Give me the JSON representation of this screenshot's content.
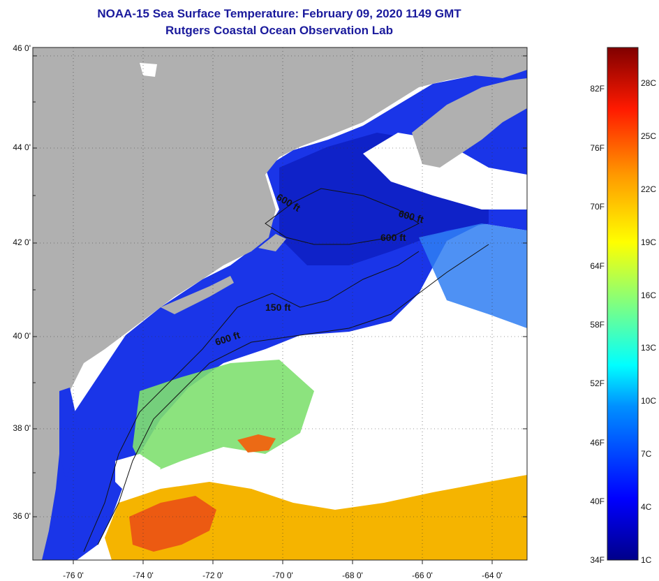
{
  "header": {
    "title": "NOAA-15 Sea Surface Temperature:  February 09, 2020 1149 GMT",
    "subtitle": "Rutgers Coastal Ocean Observation Lab"
  },
  "axes": {
    "lat_labels": [
      "46 0'",
      "44 0'",
      "42 0'",
      "40 0'",
      "38 0'",
      "36 0'"
    ],
    "lon_labels": [
      "-76 0'",
      "-74 0'",
      "-72 0'",
      "-70 0'",
      "-68 0'",
      "-66 0'",
      "-64 0'"
    ]
  },
  "contours": [
    "600 ft",
    "600 ft",
    "600 ft",
    "150 ft",
    "600 ft"
  ],
  "colorbar": {
    "fahrenheit": [
      "82F",
      "76F",
      "70F",
      "64F",
      "58F",
      "52F",
      "46F",
      "40F",
      "34F"
    ],
    "celsius": [
      "28C",
      "25C",
      "22C",
      "19C",
      "16C",
      "13C",
      "10C",
      "7C",
      "4C",
      "1C"
    ]
  },
  "colors": {
    "land": "#b0b0b0",
    "cloud": "#ffffff",
    "cold_water": "#1a33e6",
    "title": "#1a1a9c"
  }
}
